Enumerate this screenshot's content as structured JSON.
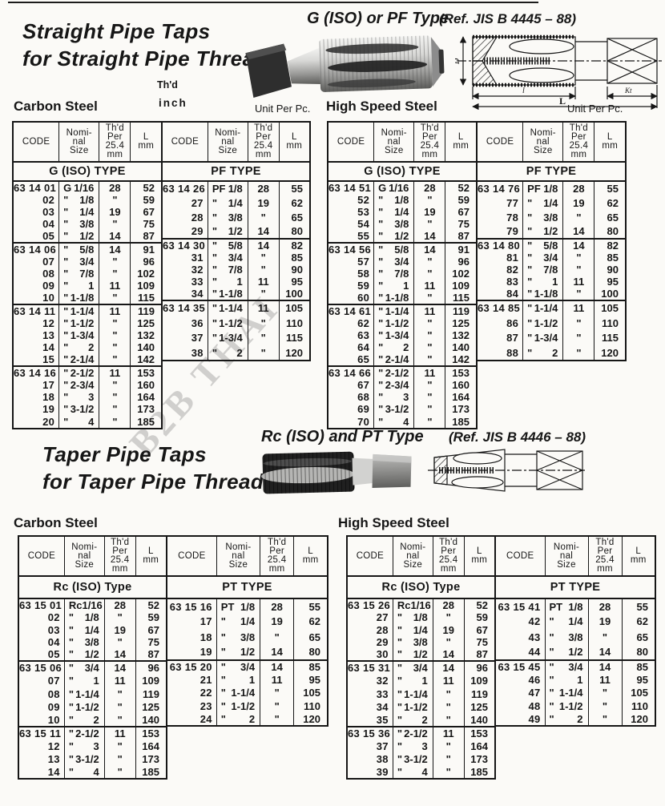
{
  "straight": {
    "title_line1": "Straight Pipe Taps",
    "title_line2": "for Straight Pipe Thread",
    "type_title": "G (ISO) or PF Type",
    "ref": "(Ref. JIS B 4445 – 88)",
    "thd_label": "Th'd",
    "inch_label": "inch",
    "unit_label_left": "Unit Per Pc.",
    "unit_label_right": "Unit Per Pc.",
    "carbon_label": "Carbon Steel",
    "hss_label": "High Speed Steel"
  },
  "taper": {
    "title_line1": "Taper Pipe Taps",
    "title_line2": "for Taper Pipe Thread",
    "type_title": "Rc (ISO) and PT Type",
    "ref": "(Ref. JIS B 4446 – 88)",
    "carbon_label": "Carbon Steel",
    "hss_label": "High Speed Steel"
  },
  "watermark": "B2B THAI",
  "drawing_labels": {
    "diameter": "D",
    "thread_length": "l",
    "overall_length": "L",
    "square_length": "Kt"
  },
  "table_headers": {
    "code": "CODE",
    "nominal": [
      "Nomi-",
      "nal",
      "Size"
    ],
    "thd_per": [
      "Th'd",
      "Per",
      "25.4",
      "mm"
    ],
    "length": [
      "L",
      "mm"
    ]
  },
  "tables": {
    "straight_carbon_g": {
      "type_label": "G (ISO) TYPE",
      "blocks": [
        [
          [
            "63 14 01",
            "G",
            "1/16",
            "28",
            "52"
          ],
          [
            "02",
            "\"",
            "1/8",
            "\"",
            "59"
          ],
          [
            "03",
            "\"",
            "1/4",
            "19",
            "67"
          ],
          [
            "04",
            "\"",
            "3/8",
            "\"",
            "75"
          ],
          [
            "05",
            "\"",
            "1/2",
            "14",
            "87"
          ]
        ],
        [
          [
            "63 14 06",
            "\"",
            "5/8",
            "14",
            "91"
          ],
          [
            "07",
            "\"",
            "3/4",
            "\"",
            "96"
          ],
          [
            "08",
            "\"",
            "7/8",
            "\"",
            "102"
          ],
          [
            "09",
            "\"",
            "1",
            "11",
            "109"
          ],
          [
            "10",
            "\"",
            "1-1/8",
            "\"",
            "115"
          ]
        ],
        [
          [
            "63 14 11",
            "\"",
            "1-1/4",
            "11",
            "119"
          ],
          [
            "12",
            "\"",
            "1-1/2",
            "\"",
            "125"
          ],
          [
            "13",
            "\"",
            "1-3/4",
            "\"",
            "132"
          ],
          [
            "14",
            "\"",
            "2",
            "\"",
            "140"
          ],
          [
            "15",
            "\"",
            "2-1/4",
            "\"",
            "142"
          ]
        ],
        [
          [
            "63 14 16",
            "\"",
            "2-1/2",
            "11",
            "153"
          ],
          [
            "17",
            "\"",
            "2-3/4",
            "\"",
            "160"
          ],
          [
            "18",
            "\"",
            "3",
            "\"",
            "164"
          ],
          [
            "19",
            "\"",
            "3-1/2",
            "\"",
            "173"
          ],
          [
            "20",
            "\"",
            "4",
            "\"",
            "185"
          ]
        ]
      ]
    },
    "straight_carbon_pf": {
      "type_label": "PF TYPE",
      "blocks": [
        [
          [
            "63 14 26",
            "PF",
            "1/8",
            "28",
            "55"
          ],
          [
            "27",
            "\"",
            "1/4",
            "19",
            "62"
          ],
          [
            "28",
            "\"",
            "3/8",
            "\"",
            "65"
          ],
          [
            "29",
            "\"",
            "1/2",
            "14",
            "80"
          ]
        ],
        [
          [
            "63 14 30",
            "\"",
            "5/8",
            "14",
            "82"
          ],
          [
            "31",
            "\"",
            "3/4",
            "\"",
            "85"
          ],
          [
            "32",
            "\"",
            "7/8",
            "\"",
            "90"
          ],
          [
            "33",
            "\"",
            "1",
            "11",
            "95"
          ],
          [
            "34",
            "\"",
            "1-1/8",
            "\"",
            "100"
          ]
        ],
        [
          [
            "63 14 35",
            "\"",
            "1-1/4",
            "11",
            "105"
          ],
          [
            "36",
            "\"",
            "1-1/2",
            "\"",
            "110"
          ],
          [
            "37",
            "\"",
            "1-3/4",
            "\"",
            "115"
          ],
          [
            "38",
            "\"",
            "2",
            "\"",
            "120"
          ]
        ]
      ]
    },
    "straight_hss_g": {
      "type_label": "G (ISO) TYPE",
      "blocks": [
        [
          [
            "63 14 51",
            "G",
            "1/16",
            "28",
            "52"
          ],
          [
            "52",
            "\"",
            "1/8",
            "\"",
            "59"
          ],
          [
            "53",
            "\"",
            "1/4",
            "19",
            "67"
          ],
          [
            "54",
            "\"",
            "3/8",
            "\"",
            "75"
          ],
          [
            "55",
            "\"",
            "1/2",
            "14",
            "87"
          ]
        ],
        [
          [
            "63 14 56",
            "\"",
            "5/8",
            "14",
            "91"
          ],
          [
            "57",
            "\"",
            "3/4",
            "\"",
            "96"
          ],
          [
            "58",
            "\"",
            "7/8",
            "\"",
            "102"
          ],
          [
            "59",
            "\"",
            "1",
            "11",
            "109"
          ],
          [
            "60",
            "\"",
            "1-1/8",
            "\"",
            "115"
          ]
        ],
        [
          [
            "63 14 61",
            "\"",
            "1-1/4",
            "11",
            "119"
          ],
          [
            "62",
            "\"",
            "1-1/2",
            "\"",
            "125"
          ],
          [
            "63",
            "\"",
            "1-3/4",
            "\"",
            "132"
          ],
          [
            "64",
            "\"",
            "2",
            "\"",
            "140"
          ],
          [
            "65",
            "\"",
            "2-1/4",
            "\"",
            "142"
          ]
        ],
        [
          [
            "63 14 66",
            "\"",
            "2-1/2",
            "11",
            "153"
          ],
          [
            "67",
            "\"",
            "2-3/4",
            "\"",
            "160"
          ],
          [
            "68",
            "\"",
            "3",
            "\"",
            "164"
          ],
          [
            "69",
            "\"",
            "3-1/2",
            "\"",
            "173"
          ],
          [
            "70",
            "\"",
            "4",
            "\"",
            "185"
          ]
        ]
      ]
    },
    "straight_hss_pf": {
      "type_label": "PF TYPE",
      "blocks": [
        [
          [
            "63 14 76",
            "PF",
            "1/8",
            "28",
            "55"
          ],
          [
            "77",
            "\"",
            "1/4",
            "19",
            "62"
          ],
          [
            "78",
            "\"",
            "3/8",
            "\"",
            "65"
          ],
          [
            "79",
            "\"",
            "1/2",
            "14",
            "80"
          ]
        ],
        [
          [
            "63 14 80",
            "\"",
            "5/8",
            "14",
            "82"
          ],
          [
            "81",
            "\"",
            "3/4",
            "\"",
            "85"
          ],
          [
            "82",
            "\"",
            "7/8",
            "\"",
            "90"
          ],
          [
            "83",
            "\"",
            "1",
            "11",
            "95"
          ],
          [
            "84",
            "\"",
            "1-1/8",
            "\"",
            "100"
          ]
        ],
        [
          [
            "63 14 85",
            "\"",
            "1-1/4",
            "11",
            "105"
          ],
          [
            "86",
            "\"",
            "1-1/2",
            "\"",
            "110"
          ],
          [
            "87",
            "\"",
            "1-3/4",
            "\"",
            "115"
          ],
          [
            "88",
            "\"",
            "2",
            "\"",
            "120"
          ]
        ]
      ]
    },
    "taper_carbon_rc": {
      "type_label": "Rc (ISO) Type",
      "blocks": [
        [
          [
            "63 15 01",
            "Rc",
            "1/16",
            "28",
            "52"
          ],
          [
            "02",
            "\"",
            "1/8",
            "\"",
            "59"
          ],
          [
            "03",
            "\"",
            "1/4",
            "19",
            "67"
          ],
          [
            "04",
            "\"",
            "3/8",
            "\"",
            "75"
          ],
          [
            "05",
            "\"",
            "1/2",
            "14",
            "87"
          ]
        ],
        [
          [
            "63 15 06",
            "\"",
            "3/4",
            "14",
            "96"
          ],
          [
            "07",
            "\"",
            "1",
            "11",
            "109"
          ],
          [
            "08",
            "\"",
            "1-1/4",
            "\"",
            "119"
          ],
          [
            "09",
            "\"",
            "1-1/2",
            "\"",
            "125"
          ],
          [
            "10",
            "\"",
            "2",
            "\"",
            "140"
          ]
        ],
        [
          [
            "63 15 11",
            "\"",
            "2-1/2",
            "11",
            "153"
          ],
          [
            "12",
            "\"",
            "3",
            "\"",
            "164"
          ],
          [
            "13",
            "\"",
            "3-1/2",
            "\"",
            "173"
          ],
          [
            "14",
            "\"",
            "4",
            "\"",
            "185"
          ]
        ]
      ]
    },
    "taper_carbon_pt": {
      "type_label": "PT TYPE",
      "blocks": [
        [
          [
            "63 15 16",
            "PT",
            "1/8",
            "28",
            "55"
          ],
          [
            "17",
            "\"",
            "1/4",
            "19",
            "62"
          ],
          [
            "18",
            "\"",
            "3/8",
            "\"",
            "65"
          ],
          [
            "19",
            "\"",
            "1/2",
            "14",
            "80"
          ]
        ],
        [
          [
            "63 15 20",
            "\"",
            "3/4",
            "14",
            "85"
          ],
          [
            "21",
            "\"",
            "1",
            "11",
            "95"
          ],
          [
            "22",
            "\"",
            "1-1/4",
            "\"",
            "105"
          ],
          [
            "23",
            "\"",
            "1-1/2",
            "\"",
            "110"
          ],
          [
            "24",
            "\"",
            "2",
            "\"",
            "120"
          ]
        ]
      ]
    },
    "taper_hss_rc": {
      "type_label": "Rc (ISO) Type",
      "blocks": [
        [
          [
            "63 15 26",
            "Rc",
            "1/16",
            "28",
            "52"
          ],
          [
            "27",
            "\"",
            "1/8",
            "\"",
            "59"
          ],
          [
            "28",
            "\"",
            "1/4",
            "19",
            "67"
          ],
          [
            "29",
            "\"",
            "3/8",
            "\"",
            "75"
          ],
          [
            "30",
            "\"",
            "1/2",
            "14",
            "87"
          ]
        ],
        [
          [
            "63 15 31",
            "\"",
            "3/4",
            "14",
            "96"
          ],
          [
            "32",
            "\"",
            "1",
            "11",
            "109"
          ],
          [
            "33",
            "\"",
            "1-1/4",
            "\"",
            "119"
          ],
          [
            "34",
            "\"",
            "1-1/2",
            "\"",
            "125"
          ],
          [
            "35",
            "\"",
            "2",
            "\"",
            "140"
          ]
        ],
        [
          [
            "63 15 36",
            "\"",
            "2-1/2",
            "11",
            "153"
          ],
          [
            "37",
            "\"",
            "3",
            "\"",
            "164"
          ],
          [
            "38",
            "\"",
            "3-1/2",
            "\"",
            "173"
          ],
          [
            "39",
            "\"",
            "4",
            "\"",
            "185"
          ]
        ]
      ]
    },
    "taper_hss_pt": {
      "type_label": "PT TYPE",
      "blocks": [
        [
          [
            "63 15 41",
            "PT",
            "1/8",
            "28",
            "55"
          ],
          [
            "42",
            "\"",
            "1/4",
            "19",
            "62"
          ],
          [
            "43",
            "\"",
            "3/8",
            "\"",
            "65"
          ],
          [
            "44",
            "\"",
            "1/2",
            "14",
            "80"
          ]
        ],
        [
          [
            "63 15 45",
            "\"",
            "3/4",
            "14",
            "85"
          ],
          [
            "46",
            "\"",
            "1",
            "11",
            "95"
          ],
          [
            "47",
            "\"",
            "1-1/4",
            "\"",
            "105"
          ],
          [
            "48",
            "\"",
            "1-1/2",
            "\"",
            "110"
          ],
          [
            "49",
            "\"",
            "2",
            "\"",
            "120"
          ]
        ]
      ]
    }
  }
}
